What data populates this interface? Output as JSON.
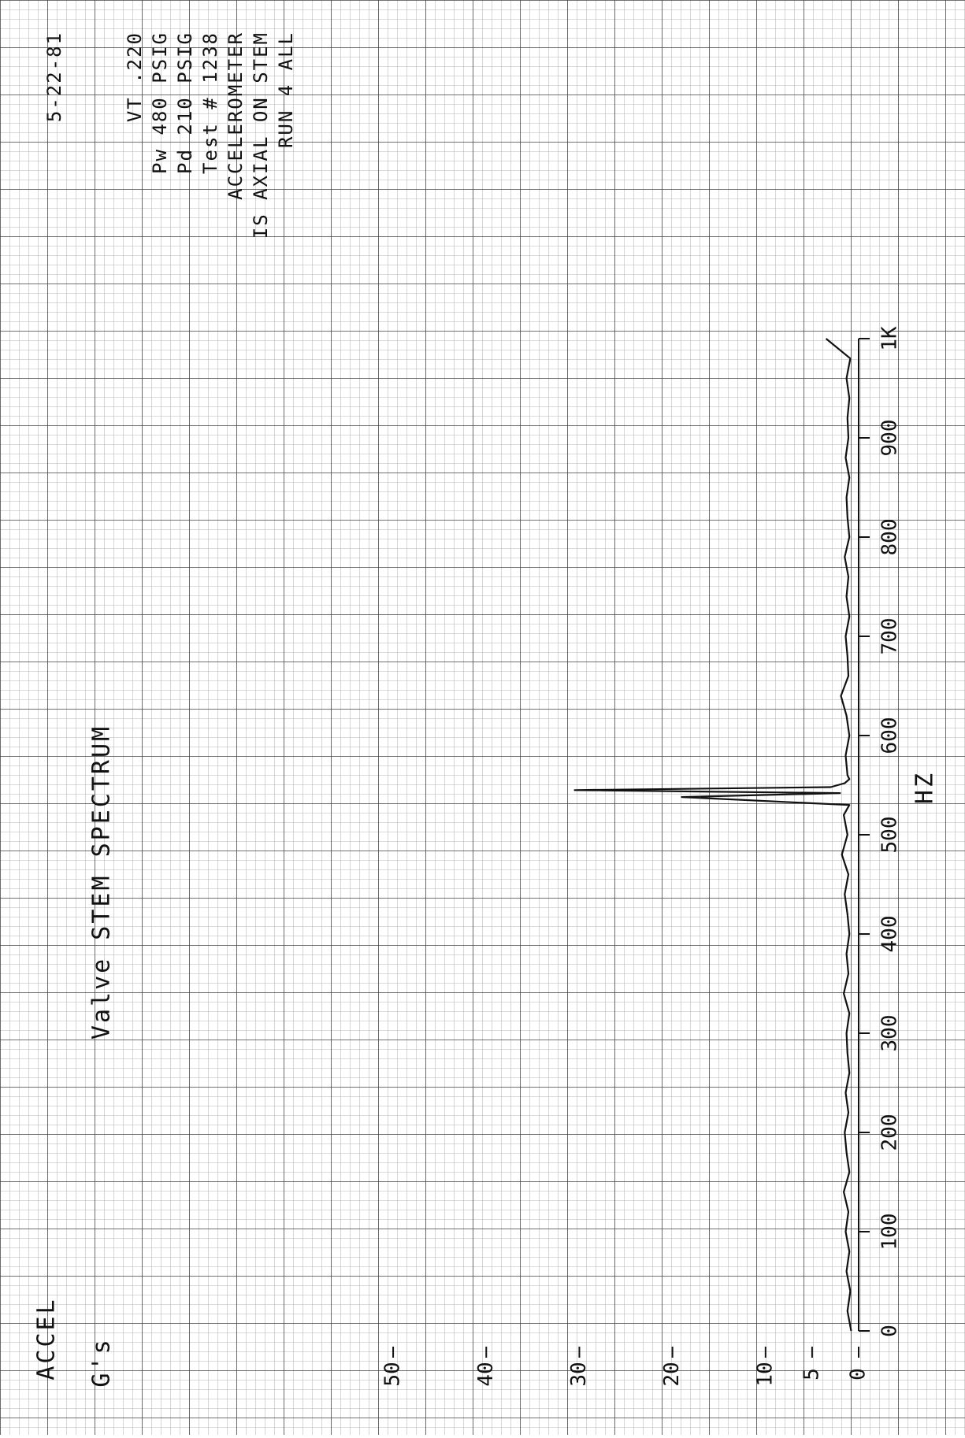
{
  "chart_data": {
    "type": "line",
    "title": "Valve STEM SPECTRUM",
    "notes": [
      "5-22-81",
      "VT .220",
      "Pw 480 PSIG",
      "Pd 210 PSIG",
      "Test # 1238",
      "ACCELEROMETER",
      "IS AXIAL ON STEM",
      "RUN 4 ALL"
    ],
    "x_label": "HZ",
    "y_label": "ACCEL",
    "y_unit": "G's",
    "x": [
      0,
      20,
      40,
      60,
      80,
      100,
      120,
      140,
      160,
      180,
      200,
      220,
      240,
      260,
      280,
      300,
      320,
      340,
      360,
      380,
      400,
      420,
      440,
      460,
      480,
      500,
      520,
      530,
      538,
      542,
      545,
      548,
      552,
      556,
      560,
      580,
      600,
      620,
      640,
      660,
      680,
      700,
      720,
      740,
      760,
      780,
      800,
      820,
      840,
      860,
      880,
      900,
      920,
      940,
      960,
      980,
      1000
    ],
    "values": [
      0.8,
      1.2,
      0.9,
      1.3,
      1.0,
      1.4,
      1.1,
      1.6,
      1.0,
      1.3,
      1.5,
      1.1,
      1.4,
      1.0,
      1.2,
      1.3,
      1.0,
      1.6,
      1.1,
      1.3,
      1.0,
      1.2,
      1.5,
      1.1,
      1.8,
      1.2,
      1.6,
      1.0,
      19,
      2,
      30.5,
      3,
      1.5,
      1.0,
      1.2,
      1.4,
      1.0,
      1.3,
      1.9,
      1.1,
      1.2,
      1.4,
      1.0,
      1.3,
      1.1,
      1.5,
      1.0,
      1.2,
      1.3,
      1.0,
      1.4,
      1.1,
      1.2,
      1.0,
      1.3,
      0.9,
      3.5
    ],
    "color": "#111111",
    "xlim": [
      0,
      1000
    ],
    "xticks": [
      0,
      100,
      200,
      300,
      400,
      500,
      600,
      700,
      800,
      900,
      {
        "value": 1000,
        "label": "1K"
      }
    ],
    "ylim": [
      0,
      55
    ],
    "yticks": [
      0,
      5,
      10,
      20,
      30,
      40,
      50
    ]
  }
}
